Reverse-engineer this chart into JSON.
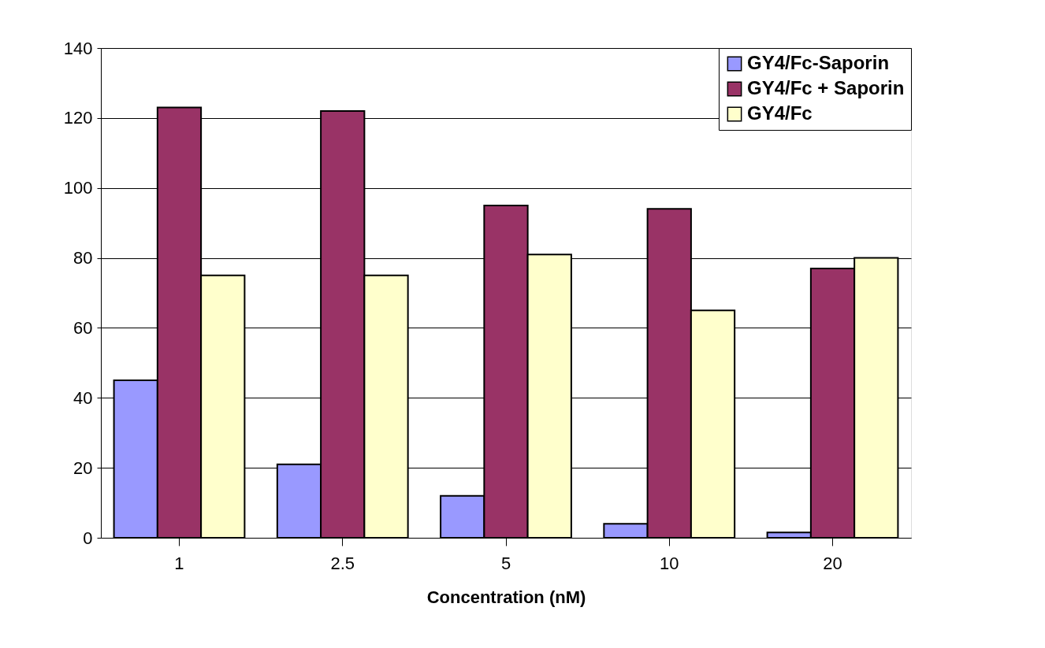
{
  "chart_data": {
    "type": "bar",
    "xlabel": "Concentration (nM)",
    "categories": [
      "1",
      "2.5",
      "5",
      "10",
      "20"
    ],
    "series": [
      {
        "name": "GY4/Fc-Saporin",
        "color": "#9999ff",
        "values": [
          45,
          21,
          12,
          4,
          1.5
        ]
      },
      {
        "name": "GY4/Fc + Saporin",
        "color": "#993366",
        "values": [
          123,
          122,
          95,
          94,
          77
        ]
      },
      {
        "name": "GY4/Fc",
        "color": "#ffffcc",
        "values": [
          75,
          75,
          81,
          65,
          80
        ]
      }
    ],
    "ylim": [
      0,
      140
    ],
    "yticks": [
      0,
      20,
      40,
      60,
      80,
      100,
      120,
      140
    ],
    "grid": "y",
    "legend": "top right"
  }
}
